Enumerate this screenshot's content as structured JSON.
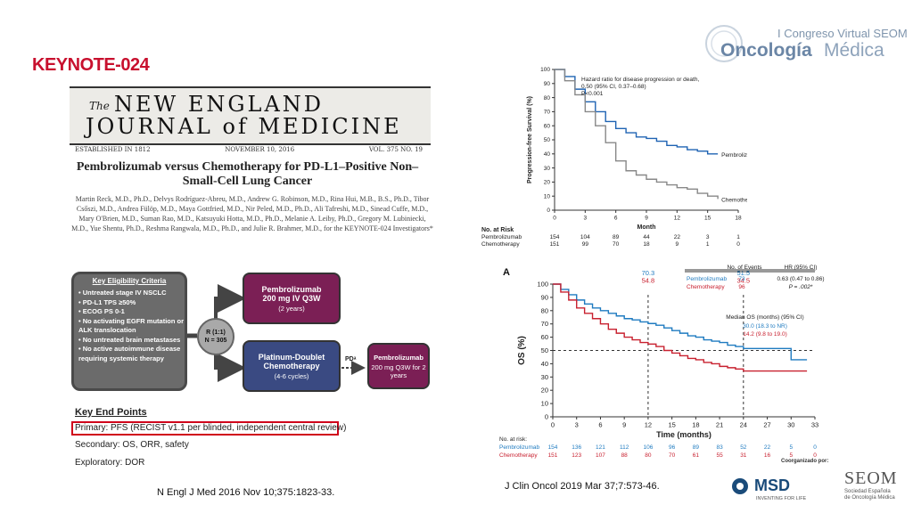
{
  "slide": {
    "title": "KEYNOTE-024"
  },
  "congress": {
    "line1": "I Congreso Virtual SEOM",
    "brand_main": "Oncología",
    "brand_sub": "Médica"
  },
  "nejm": {
    "the": "The",
    "line1": "NEW ENGLAND",
    "line2": "JOURNAL of MEDICINE",
    "established": "ESTABLISHED IN 1812",
    "date": "NOVEMBER 10, 2016",
    "volume": "VOL. 375   NO. 19",
    "paper_title": "Pembrolizumab versus Chemotherapy for PD-L1–Positive Non–Small-Cell Lung Cancer",
    "authors": "Martin Reck, M.D., Ph.D., Delvys Rodríguez-Abreu, M.D., Andrew G. Robinson, M.D., Rina Hui, M.B., B.S., Ph.D., Tibor Csőszi, M.D., Andrea Fülöp, M.D., Maya Gottfried, M.D., Nir Peled, M.D., Ph.D., Ali Tafreshi, M.D., Sinead Cuffe, M.D., Mary O'Brien, M.D., Suman Rao, M.D., Katsuyuki Hotta, M.D., Ph.D., Melanie A. Leiby, Ph.D., Gregory M. Lubiniecki, M.D., Yue Shentu, Ph.D., Reshma Rangwala, M.D., Ph.D., and Julie R. Brahmer, M.D., for the KEYNOTE-024 Investigators*"
  },
  "design": {
    "eligibility_head": "Key Eligibility Criteria",
    "eligibility": [
      "Untreated stage IV NSCLC",
      "PD-L1 TPS ≥50%",
      "ECOG PS 0-1",
      "No activating EGFR mutation or ALK translocation",
      "No untreated brain metastases",
      "No active autoimmune disease requiring systemic therapy"
    ],
    "randomization": "R (1:1)",
    "n": "N = 305",
    "arm1_name": "Pembrolizumab",
    "arm1_dose": "200 mg IV Q3W",
    "arm1_duration": "(2 years)",
    "arm2_name": "Platinum-Doublet Chemotherapy",
    "arm2_duration": "(4-6 cycles)",
    "pd_label": "PDᵃ",
    "crossover_name": "Pembrolizumab",
    "crossover_dose": "200 mg Q3W for 2 years",
    "endpoints_head": "Key End Points",
    "primary": "Primary: PFS (RECIST v1.1 per blinded, independent central review)",
    "secondary": "Secondary: OS, ORR, safety",
    "exploratory": "Exploratory: DOR"
  },
  "citations": {
    "nejm": "N Engl J Med 2016 Nov 10;375:1823-33.",
    "jco": "J Clin Oncol 2019 Mar 37;7:573-46."
  },
  "footer": {
    "cosponsor": "Coorganizado por:",
    "msd": "MSD",
    "msd_tagline": "INVENTING FOR LIFE",
    "seom": "SEOM",
    "seom_sub": "Sociedad Española de Oncología Médica"
  },
  "chart_data": [
    {
      "type": "line",
      "ylabel": "Progression-free Survival (%)",
      "xlabel": "Month",
      "xlim": [
        0,
        18
      ],
      "ylim": [
        0,
        100
      ],
      "x_ticks": [
        0,
        3,
        6,
        9,
        12,
        15,
        18
      ],
      "y_ticks": [
        0,
        10,
        20,
        30,
        40,
        50,
        60,
        70,
        80,
        90,
        100
      ],
      "annotation_lines": [
        "Hazard ratio for disease progression or death,",
        "0.50 (95% CI, 0.37–0.68)",
        "P<0.001"
      ],
      "series": [
        {
          "name": "Pembrolizumab",
          "color": "#1f63b3",
          "x": [
            0,
            1,
            2,
            3,
            4,
            5,
            6,
            7,
            8,
            9,
            10,
            11,
            12,
            13,
            14,
            15,
            16
          ],
          "y": [
            100,
            95,
            86,
            77,
            70,
            63,
            58,
            55,
            52,
            51,
            49,
            46,
            45,
            43,
            42,
            40,
            40
          ]
        },
        {
          "name": "Chemotherapy",
          "color": "#888888",
          "x": [
            0,
            1,
            2,
            3,
            4,
            5,
            6,
            7,
            8,
            9,
            10,
            11,
            12,
            13,
            14,
            15,
            16
          ],
          "y": [
            100,
            92,
            82,
            70,
            60,
            48,
            35,
            28,
            25,
            22,
            20,
            18,
            16,
            15,
            12,
            10,
            8
          ]
        }
      ],
      "risk_table": {
        "title": "No. at Risk",
        "rows": [
          {
            "name": "Pembrolizumab",
            "values": [
              154,
              104,
              89,
              44,
              22,
              3,
              1
            ]
          },
          {
            "name": "Chemotherapy",
            "values": [
              151,
              99,
              70,
              18,
              9,
              1,
              0
            ]
          }
        ]
      }
    },
    {
      "type": "line",
      "panel_label": "A",
      "ylabel": "OS (%)",
      "xlabel": "Time (months)",
      "xlim": [
        0,
        33
      ],
      "ylim": [
        0,
        100
      ],
      "x_ticks": [
        0,
        3,
        6,
        9,
        12,
        15,
        18,
        21,
        24,
        27,
        30,
        33
      ],
      "y_ticks": [
        0,
        10,
        20,
        30,
        40,
        50,
        60,
        70,
        80,
        90,
        100
      ],
      "reference_y": 50,
      "milestones": [
        {
          "x": 12,
          "labels": [
            "70.3",
            "54.8"
          ]
        },
        {
          "x": 24,
          "labels": [
            "51.5",
            "34.5"
          ]
        }
      ],
      "legend_header": [
        "No. of Events",
        "HR (95% CI)"
      ],
      "legend_rows": [
        {
          "name": "Pembrolizumab",
          "events": "73",
          "hr": "0.63 (0.47 to 0.86)"
        },
        {
          "name": "Chemotherapy",
          "events": "96",
          "hr": "P = .002*"
        }
      ],
      "median_head": "Median OS (months) (95% CI)",
      "median_values": [
        "30.0 (18.3 to NR)",
        "14.2 (9.8 to 19.0)"
      ],
      "series": [
        {
          "name": "Pembrolizumab",
          "color": "#1f7bc0",
          "x": [
            0,
            1,
            2,
            3,
            4,
            5,
            6,
            7,
            8,
            9,
            10,
            11,
            12,
            13,
            14,
            15,
            16,
            17,
            18,
            19,
            20,
            21,
            22,
            23,
            24,
            25,
            26,
            27,
            28,
            29,
            30,
            31,
            32
          ],
          "y": [
            100,
            96,
            92,
            88,
            85,
            82,
            80,
            78,
            76,
            74,
            73,
            71.5,
            70.3,
            69,
            67,
            65,
            63,
            61,
            60,
            58,
            57,
            56,
            54,
            53,
            51.5,
            51.5,
            51.5,
            51.5,
            51.5,
            51.5,
            43,
            43,
            43
          ]
        },
        {
          "name": "Chemotherapy",
          "color": "#c8202f",
          "x": [
            0,
            1,
            2,
            3,
            4,
            5,
            6,
            7,
            8,
            9,
            10,
            11,
            12,
            13,
            14,
            15,
            16,
            17,
            18,
            19,
            20,
            21,
            22,
            23,
            24,
            25,
            26,
            27,
            28,
            29,
            30,
            31,
            32
          ],
          "y": [
            100,
            94,
            88,
            82,
            78,
            74,
            70,
            66,
            63,
            60,
            58,
            56,
            54.8,
            53,
            50,
            48,
            46,
            44,
            43,
            41,
            40,
            38,
            37,
            36,
            34.5,
            34.5,
            34.5,
            34.5,
            34.5,
            34.5,
            34.5,
            34.5,
            34.5
          ]
        }
      ],
      "risk_table": {
        "title": "No. at risk:",
        "rows": [
          {
            "name": "Pembrolizumab",
            "values": [
              154,
              136,
              121,
              112,
              106,
              96,
              89,
              83,
              52,
              22,
              5,
              0
            ]
          },
          {
            "name": "Chemotherapy",
            "values": [
              151,
              123,
              107,
              88,
              80,
              70,
              61,
              55,
              31,
              16,
              5,
              0
            ]
          }
        ]
      }
    }
  ]
}
